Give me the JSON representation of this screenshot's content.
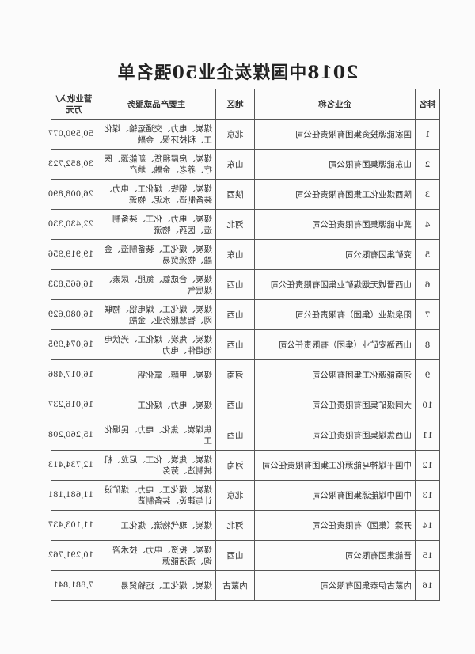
{
  "title": "2018中国煤炭企业50强名单",
  "columns": [
    "排名",
    "企业名称",
    "地区",
    "主要产品或服务",
    "营业收入/万元"
  ],
  "rows": [
    {
      "rank": "1",
      "name": "国家能源投资集团有限责任公司",
      "region": "北京",
      "products": "煤炭、电力、交通运输、煤化工、科技环保、金融",
      "revenue": "50,590,077"
    },
    {
      "rank": "2",
      "name": "山东能源集团有限公司",
      "region": "山东",
      "products": "煤炭、房屋租赁、新能源、医疗、养老、金融、地产",
      "revenue": "30,852,723"
    },
    {
      "rank": "3",
      "name": "陕西煤业化工集团有限责任公司",
      "region": "陕西",
      "products": "煤炭、钢铁、煤化工、电力、装备制造、水泥、物流",
      "revenue": "26,008,890"
    },
    {
      "rank": "4",
      "name": "冀中能源集团有限责任公司",
      "region": "河北",
      "products": "煤炭、电力、化工、装备制造、医药、物流",
      "revenue": "22,430,330"
    },
    {
      "rank": "5",
      "name": "兖矿集团有限公司",
      "region": "山东",
      "products": "煤炭、煤化工、装备制造、金融、物流贸易",
      "revenue": "19,919,956"
    },
    {
      "rank": "6",
      "name": "山西晋城无烟煤矿业集团有限责任公司",
      "region": "山西",
      "products": "煤炭、合成氨、氮肥、尿素、煤层气",
      "revenue": "16,665,833"
    },
    {
      "rank": "7",
      "name": "阳泉煤业（集团）有限责任公司",
      "region": "山西",
      "products": "煤炭、煤化工、煤电铝、物联网、智慧服务业、金融",
      "revenue": "16,080,629"
    },
    {
      "rank": "8",
      "name": "山西潞安矿业（集团）有限责任公司",
      "region": "山西",
      "products": "煤炭、焦炭、煤化工、光伏电池组件、电力",
      "revenue": "16,074,995"
    },
    {
      "rank": "9",
      "name": "河南能源化工集团有限公司",
      "region": "河南",
      "products": "煤炭、甲醇、氧化铝",
      "revenue": "16,017,486"
    },
    {
      "rank": "10",
      "name": "大同煤矿集团有限责任公司",
      "region": "山西",
      "products": "煤炭、电力、煤化工",
      "revenue": "16,016,237"
    },
    {
      "rank": "11",
      "name": "山西焦煤集团有限责任公司",
      "region": "山西",
      "products": "焦煤炭、焦化、电力、民爆化工",
      "revenue": "15,260,208"
    },
    {
      "rank": "12",
      "name": "中国平煤神马能源化工集团有限责任公司",
      "region": "河南",
      "products": "煤炭、焦炭、化工、尼龙、机械制造、劳务",
      "revenue": "12,734,413"
    },
    {
      "rank": "13",
      "name": "中国中煤能源集团有限公司",
      "region": "北京",
      "products": "煤炭、煤化工、电力、煤矿设计与建设、装备制造",
      "revenue": "11,681,181"
    },
    {
      "rank": "14",
      "name": "开滦（集团）有限责任公司",
      "region": "河北",
      "products": "煤炭、现代物流、煤化工",
      "revenue": "11,103,437"
    },
    {
      "rank": "15",
      "name": "晋能集团有限公司",
      "region": "山西",
      "products": "煤炭、投资、电力、技术咨询、清洁能源",
      "revenue": "10,291,762"
    },
    {
      "rank": "16",
      "name": "内蒙古伊泰集团有限公司",
      "region": "内蒙古",
      "products": "煤炭、煤化工、运输贸易",
      "revenue": "7,881,841"
    }
  ]
}
